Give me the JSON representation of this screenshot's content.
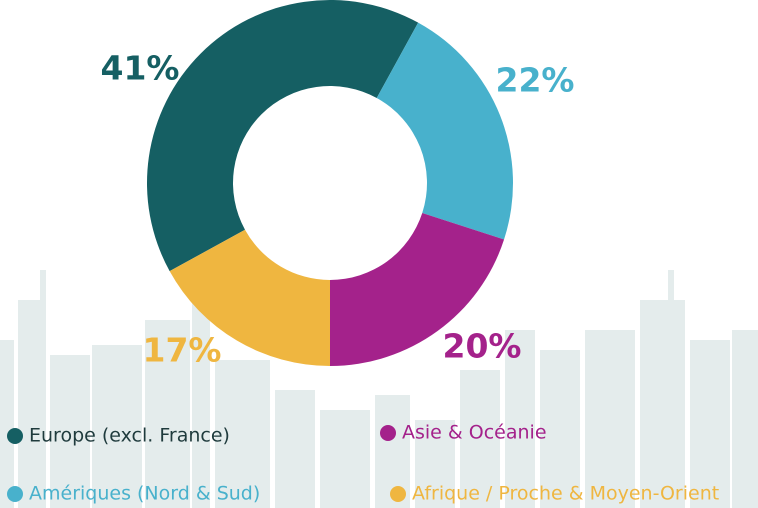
{
  "chart_data": {
    "type": "pie",
    "donut": true,
    "categories": [
      "Europe (excl. France)",
      "Amériques (Nord & Sud)",
      "Asie & Océanie",
      "Afrique / Proche & Moyen-Orient"
    ],
    "values": [
      41,
      22,
      20,
      17
    ],
    "value_labels": [
      "41%",
      "22%",
      "20%",
      "17%"
    ],
    "colors": [
      "#155f63",
      "#48b1cc",
      "#a4228b",
      "#efb640"
    ]
  }
}
